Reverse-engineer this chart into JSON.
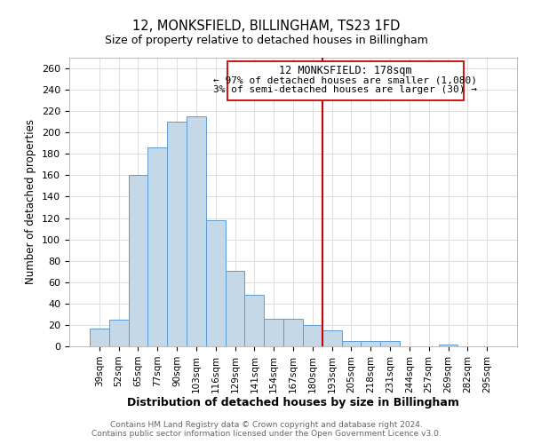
{
  "title": "12, MONKSFIELD, BILLINGHAM, TS23 1FD",
  "subtitle": "Size of property relative to detached houses in Billingham",
  "xlabel": "Distribution of detached houses by size in Billingham",
  "ylabel": "Number of detached properties",
  "bar_labels": [
    "39sqm",
    "52sqm",
    "65sqm",
    "77sqm",
    "90sqm",
    "103sqm",
    "116sqm",
    "129sqm",
    "141sqm",
    "154sqm",
    "167sqm",
    "180sqm",
    "193sqm",
    "205sqm",
    "218sqm",
    "231sqm",
    "244sqm",
    "257sqm",
    "269sqm",
    "282sqm",
    "295sqm"
  ],
  "bar_heights": [
    17,
    25,
    160,
    186,
    210,
    215,
    118,
    71,
    48,
    26,
    26,
    20,
    15,
    5,
    5,
    5,
    0,
    0,
    2,
    0,
    0
  ],
  "bar_color": "#c5d8e8",
  "bar_edgecolor": "#5b9bd5",
  "vline_x": 11.5,
  "vline_color": "#cc0000",
  "annotation_title": "12 MONKSFIELD: 178sqm",
  "annotation_line1": "← 97% of detached houses are smaller (1,080)",
  "annotation_line2": "3% of semi-detached houses are larger (30) →",
  "annotation_box_edgecolor": "#cc0000",
  "ylim": [
    0,
    270
  ],
  "yticks": [
    0,
    20,
    40,
    60,
    80,
    100,
    120,
    140,
    160,
    180,
    200,
    220,
    240,
    260
  ],
  "footer1": "Contains HM Land Registry data © Crown copyright and database right 2024.",
  "footer2": "Contains public sector information licensed under the Open Government Licence v3.0.",
  "background_color": "#ffffff",
  "grid_color": "#dddddd"
}
